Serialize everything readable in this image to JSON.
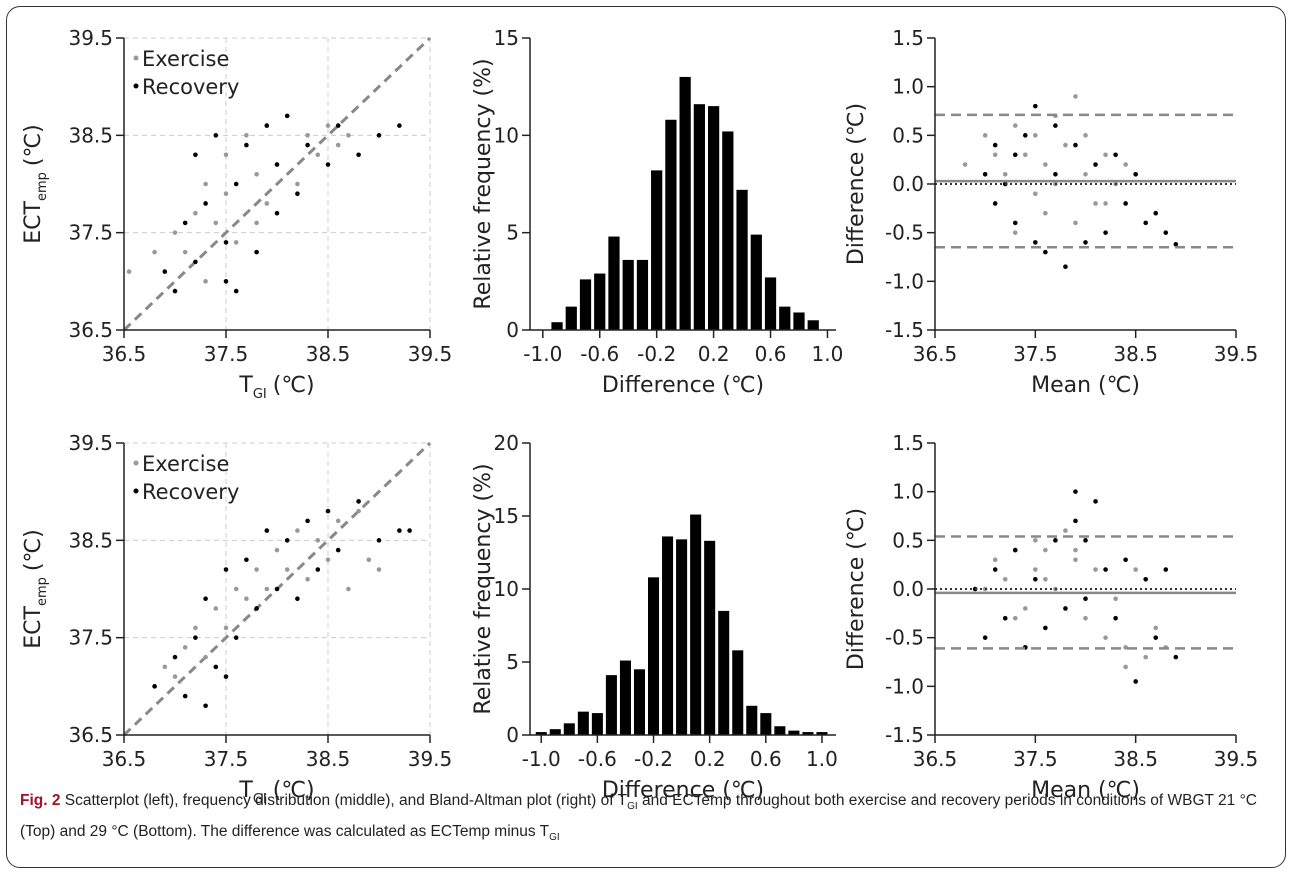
{
  "chart_data": [
    {
      "type": "scatter",
      "xlabel": {
        "main": "T",
        "sub": "GI",
        "unit": "(℃)"
      },
      "ylabel": {
        "main": "ECT",
        "sub": "emp",
        "unit": "(℃)"
      },
      "xlim": [
        36.5,
        39.5
      ],
      "ylim": [
        36.5,
        39.5
      ],
      "xticks": [
        36.5,
        37.5,
        38.5,
        39.5
      ],
      "yticks": [
        36.5,
        37.5,
        38.5,
        39.5
      ],
      "grid": true,
      "legend": "upper left",
      "series": [
        {
          "name": "Exercise",
          "color": "#999999",
          "x": [
            36.55,
            36.8,
            37.0,
            37.1,
            37.2,
            37.3,
            37.4,
            37.5,
            37.5,
            37.6,
            37.7,
            37.8,
            37.9,
            37.9,
            38.0,
            38.1,
            38.2,
            38.3,
            38.4,
            38.5,
            38.6,
            38.7,
            37.3,
            37.8
          ],
          "values": [
            37.1,
            37.3,
            37.5,
            37.3,
            37.7,
            38.0,
            37.6,
            37.9,
            38.3,
            37.4,
            38.5,
            38.1,
            37.8,
            38.6,
            38.2,
            38.7,
            38.0,
            38.5,
            38.3,
            38.6,
            38.4,
            38.5,
            37.0,
            37.6
          ]
        },
        {
          "name": "Recovery",
          "color": "#000000",
          "x": [
            36.9,
            37.0,
            37.1,
            37.2,
            37.2,
            37.3,
            37.4,
            37.5,
            37.6,
            37.6,
            37.7,
            37.8,
            37.9,
            38.0,
            38.0,
            38.1,
            38.2,
            38.3,
            38.5,
            38.6,
            38.8,
            39.0,
            39.2,
            37.5
          ],
          "values": [
            37.1,
            36.9,
            37.6,
            37.2,
            38.3,
            37.8,
            38.5,
            37.4,
            36.9,
            38.0,
            38.4,
            37.3,
            38.6,
            37.7,
            38.2,
            38.7,
            37.9,
            38.4,
            38.2,
            38.6,
            38.3,
            38.5,
            38.6,
            37.0
          ]
        }
      ]
    },
    {
      "type": "histogram",
      "xlabel": "Difference (℃)",
      "ylabel": "Relative frequency (%)",
      "color": "#000000",
      "xlim": [
        -1.09,
        1.06
      ],
      "ylim": [
        0,
        15
      ],
      "xticks": [
        {
          "value": -1,
          "label": "-1.0"
        },
        -0.6,
        -0.2,
        0.2,
        0.6,
        {
          "value": 1,
          "label": "1.0"
        }
      ],
      "yticks": [
        0,
        5,
        10,
        15
      ],
      "bins": [
        -0.95,
        -0.85,
        -0.75,
        -0.65,
        -0.55,
        -0.45,
        -0.35,
        -0.25,
        -0.15,
        -0.05,
        0.05,
        0.15,
        0.25,
        0.35,
        0.45,
        0.55,
        0.65,
        0.75,
        0.85,
        0.95
      ],
      "values": [
        0.4,
        1.2,
        2.6,
        2.9,
        4.8,
        3.6,
        3.6,
        8.2,
        10.8,
        13.0,
        11.6,
        11.5,
        10.2,
        7.2,
        4.9,
        2.7,
        1.2,
        0.9,
        0.5
      ]
    },
    {
      "type": "bland-altman",
      "xlabel": "Mean (℃)",
      "ylabel": "Difference (℃)",
      "xlim": [
        36.5,
        39.5
      ],
      "ylim": [
        -1.5,
        1.5
      ],
      "xticks": [
        36.5,
        37.5,
        38.5,
        39.5
      ],
      "yticks": [
        1.5,
        {
          "value": 1,
          "label": "1.0"
        },
        0.5,
        {
          "value": 0,
          "label": "0.0"
        },
        -0.5,
        {
          "value": -1,
          "label": "-1.0"
        },
        -1.5
      ],
      "hlines": [
        {
          "value": 0.71,
          "style": "dashed"
        },
        {
          "value": 0.03,
          "style": "solid"
        },
        {
          "value": 0,
          "style": "dotted"
        },
        {
          "value": -0.65,
          "style": "dashed"
        }
      ],
      "series": [
        {
          "name": "Exercise",
          "color": "#999999",
          "x": [
            36.8,
            37.0,
            37.1,
            37.2,
            37.3,
            37.4,
            37.5,
            37.5,
            37.6,
            37.7,
            37.8,
            37.9,
            38.0,
            38.0,
            38.1,
            38.2,
            38.3,
            38.4,
            38.5,
            37.3,
            37.6,
            37.9,
            38.2,
            37.7
          ],
          "values": [
            0.2,
            0.5,
            0.3,
            0.1,
            0.6,
            0.3,
            -0.1,
            0.5,
            0.2,
            0.7,
            0.4,
            0.9,
            0.1,
            0.5,
            -0.2,
            0.3,
            0.0,
            0.2,
            0.1,
            -0.5,
            -0.3,
            -0.4,
            -0.2,
            0.0
          ]
        },
        {
          "name": "Recovery",
          "color": "#000000",
          "x": [
            37.0,
            37.1,
            37.1,
            37.2,
            37.3,
            37.3,
            37.4,
            37.5,
            37.6,
            37.7,
            37.7,
            37.8,
            37.9,
            38.0,
            38.1,
            38.2,
            38.3,
            38.4,
            38.5,
            38.6,
            38.7,
            38.8,
            38.9,
            37.5
          ],
          "values": [
            0.1,
            -0.2,
            0.4,
            0.0,
            -0.4,
            0.3,
            0.5,
            -0.6,
            -0.7,
            0.6,
            0.1,
            -0.85,
            0.4,
            -0.6,
            0.2,
            -0.5,
            0.3,
            -0.2,
            0.1,
            -0.4,
            -0.3,
            -0.5,
            -0.62,
            0.8
          ]
        }
      ]
    },
    {
      "type": "scatter",
      "xlabel": {
        "main": "T",
        "sub": "GI",
        "unit": "(℃)"
      },
      "ylabel": {
        "main": "ECT",
        "sub": "emp",
        "unit": "(℃)"
      },
      "xlim": [
        36.5,
        39.5
      ],
      "ylim": [
        36.5,
        39.5
      ],
      "xticks": [
        36.5,
        37.5,
        38.5,
        39.5
      ],
      "yticks": [
        36.5,
        37.5,
        38.5,
        39.5
      ],
      "grid": true,
      "legend": "upper left",
      "series": [
        {
          "name": "Exercise",
          "color": "#999999",
          "x": [
            36.8,
            36.9,
            37.0,
            37.1,
            37.2,
            37.3,
            37.4,
            37.5,
            37.6,
            37.7,
            37.8,
            37.9,
            38.0,
            38.1,
            38.2,
            38.3,
            38.4,
            38.5,
            38.6,
            38.7,
            38.8,
            38.9,
            39.0,
            38.8
          ],
          "values": [
            37.0,
            37.2,
            37.1,
            37.4,
            37.6,
            37.3,
            37.8,
            37.6,
            38.0,
            37.9,
            38.2,
            38.0,
            38.4,
            38.2,
            38.6,
            38.1,
            38.5,
            38.3,
            38.7,
            38.0,
            38.9,
            38.3,
            38.2,
            38.8
          ]
        },
        {
          "name": "Recovery",
          "color": "#000000",
          "x": [
            36.8,
            37.0,
            37.1,
            37.2,
            37.3,
            37.3,
            37.4,
            37.5,
            37.6,
            37.7,
            37.8,
            37.9,
            38.0,
            38.1,
            38.2,
            38.3,
            38.4,
            38.5,
            38.6,
            38.8,
            39.0,
            39.2,
            39.3,
            37.5
          ],
          "values": [
            37.0,
            37.3,
            36.9,
            37.5,
            36.8,
            37.9,
            37.2,
            38.2,
            37.5,
            38.3,
            37.8,
            38.6,
            38.0,
            38.5,
            37.9,
            38.7,
            38.2,
            38.8,
            38.4,
            38.9,
            38.5,
            38.6,
            38.6,
            37.1
          ]
        }
      ]
    },
    {
      "type": "histogram",
      "xlabel": "Difference (℃)",
      "ylabel": "Relative frequency (%)",
      "color": "#000000",
      "xlim": [
        -1.08,
        1.1
      ],
      "ylim": [
        0,
        20
      ],
      "xticks": [
        {
          "value": -1,
          "label": "-1.0"
        },
        -0.6,
        -0.2,
        0.2,
        0.6,
        {
          "value": 1,
          "label": "1.0"
        }
      ],
      "yticks": [
        0,
        5,
        10,
        15,
        20
      ],
      "bins": [
        -1.05,
        -0.95,
        -0.85,
        -0.75,
        -0.65,
        -0.55,
        -0.45,
        -0.35,
        -0.25,
        -0.15,
        -0.05,
        0.05,
        0.15,
        0.25,
        0.35,
        0.45,
        0.55,
        0.65,
        0.75,
        0.85,
        0.95,
        1.05
      ],
      "values": [
        0.2,
        0.4,
        0.8,
        1.6,
        1.5,
        4.1,
        5.1,
        4.5,
        10.8,
        13.6,
        13.4,
        15.1,
        13.3,
        8.5,
        5.8,
        2.0,
        1.5,
        0.6,
        0.3,
        0.2,
        0.2
      ]
    },
    {
      "type": "bland-altman",
      "xlabel": "Mean (℃)",
      "ylabel": "Difference (℃)",
      "xlim": [
        36.5,
        39.5
      ],
      "ylim": [
        -1.5,
        1.5
      ],
      "xticks": [
        36.5,
        37.5,
        38.5,
        39.5
      ],
      "yticks": [
        1.5,
        {
          "value": 1,
          "label": "1.0"
        },
        0.5,
        {
          "value": 0,
          "label": "0.0"
        },
        -0.5,
        {
          "value": -1,
          "label": "-1.0"
        },
        -1.5
      ],
      "hlines": [
        {
          "value": 0.54,
          "style": "dashed"
        },
        {
          "value": -0.04,
          "style": "solid"
        },
        {
          "value": 0,
          "style": "dotted"
        },
        {
          "value": -0.61,
          "style": "dashed"
        }
      ],
      "series": [
        {
          "name": "Exercise",
          "color": "#999999",
          "x": [
            37.0,
            37.1,
            37.2,
            37.3,
            37.4,
            37.5,
            37.5,
            37.6,
            37.7,
            37.8,
            37.9,
            38.0,
            38.1,
            38.2,
            38.3,
            38.4,
            38.5,
            38.6,
            38.7,
            37.3,
            37.6,
            37.9,
            38.4,
            38.8
          ],
          "values": [
            0.0,
            0.3,
            0.1,
            0.4,
            -0.2,
            0.5,
            0.2,
            0.4,
            0.0,
            0.6,
            0.3,
            -0.3,
            0.2,
            -0.5,
            -0.1,
            -0.6,
            0.2,
            -0.7,
            -0.4,
            -0.3,
            0.1,
            0.4,
            -0.8,
            -0.6
          ]
        },
        {
          "name": "Recovery",
          "color": "#000000",
          "x": [
            36.9,
            37.0,
            37.1,
            37.2,
            37.3,
            37.4,
            37.5,
            37.6,
            37.7,
            37.8,
            37.9,
            38.0,
            38.1,
            38.2,
            38.3,
            38.4,
            38.5,
            38.6,
            38.7,
            38.8,
            38.9,
            37.9,
            38.0,
            37.4
          ],
          "values": [
            0.0,
            -0.5,
            0.2,
            -0.3,
            0.4,
            -0.6,
            0.1,
            -0.4,
            0.5,
            -0.2,
            0.7,
            -0.1,
            0.9,
            0.2,
            -0.3,
            0.3,
            -0.95,
            0.1,
            -0.5,
            0.2,
            -0.7,
            1.0,
            0.5,
            -0.6
          ]
        }
      ]
    }
  ],
  "caption": {
    "label": "Fig. 2",
    "text": [
      "Scatterplot (left), frequency distribution (middle), and Bland-Altman plot (right) of T",
      "GI",
      " and ECTemp throughout both exercise and recovery periods in conditions of WBGT 21 °C (Top) and 29 °C (Bottom). The difference was calculated as ECTemp minus T",
      "GI"
    ]
  }
}
